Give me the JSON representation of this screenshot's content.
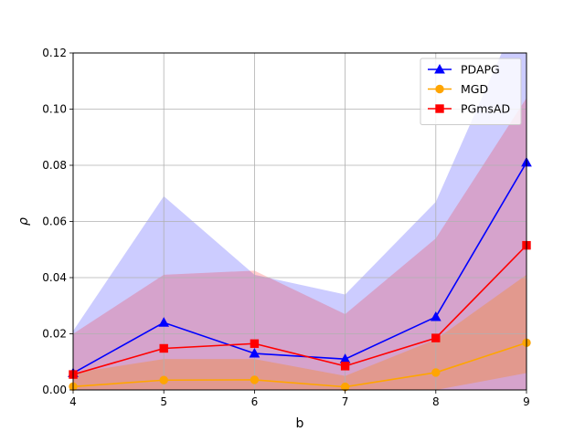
{
  "chart_data": {
    "type": "line",
    "xlabel": "b",
    "ylabel": "ρ",
    "xlim": [
      4,
      9
    ],
    "ylim": [
      0,
      0.12
    ],
    "x": [
      4,
      5,
      6,
      7,
      8,
      9
    ],
    "x_ticks": [
      4,
      5,
      6,
      7,
      8,
      9
    ],
    "x_tick_labels": [
      "4",
      "5",
      "6",
      "7",
      "8",
      "9"
    ],
    "y_ticks": [
      0,
      0.02,
      0.04,
      0.06,
      0.08,
      0.1,
      0.12
    ],
    "y_tick_labels": [
      "0.00",
      "0.02",
      "0.04",
      "0.06",
      "0.08",
      "0.10",
      "0.12"
    ],
    "grid": true,
    "legend_position": "top-right",
    "series": [
      {
        "name": "PDAPG",
        "color": "#0000ff",
        "marker": "triangle",
        "values": [
          0.006,
          0.024,
          0.013,
          0.011,
          0.026,
          0.081
        ],
        "band_upper": [
          0.021,
          0.069,
          0.041,
          0.034,
          0.067,
          0.14
        ],
        "band_lower": [
          0.0,
          0.0,
          0.0,
          0.0,
          0.0,
          0.0
        ],
        "band_color": "#0000ff",
        "band_opacity": 0.2
      },
      {
        "name": "MGD",
        "color": "#ffa500",
        "marker": "circle",
        "values": [
          0.0012,
          0.0035,
          0.0036,
          0.0011,
          0.0062,
          0.0168
        ],
        "band_upper": [
          0.006,
          0.011,
          0.011,
          0.005,
          0.018,
          0.041
        ],
        "band_lower": [
          0.0,
          0.0,
          0.0,
          0.0,
          0.0,
          0.006
        ],
        "band_color": "#ffa500",
        "band_opacity": 0.3
      },
      {
        "name": "PGmsAD",
        "color": "#ff0000",
        "marker": "square",
        "values": [
          0.0055,
          0.0148,
          0.0165,
          0.0085,
          0.0185,
          0.0515
        ],
        "band_upper": [
          0.02,
          0.041,
          0.0425,
          0.027,
          0.054,
          0.104
        ],
        "band_lower": [
          0.0,
          0.0,
          0.0,
          0.0,
          0.0,
          0.0
        ],
        "band_color": "#ff0000",
        "band_opacity": 0.2
      }
    ]
  }
}
